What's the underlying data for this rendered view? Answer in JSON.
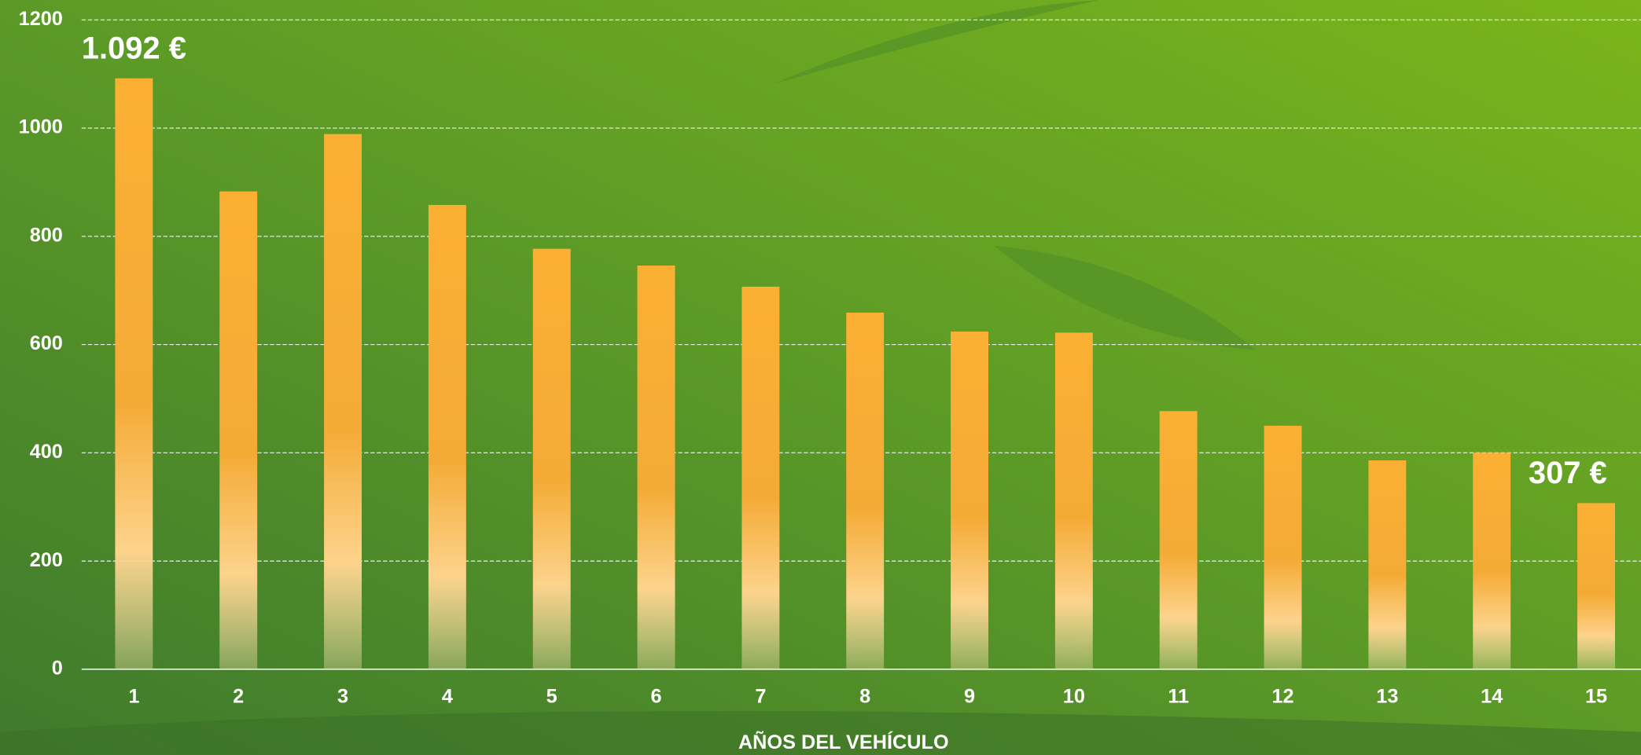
{
  "chart_data": {
    "type": "bar",
    "x_label": "AÑOS DEL VEHÍCULO",
    "categories": [
      "1",
      "2",
      "3",
      "4",
      "5",
      "6",
      "7",
      "8",
      "9",
      "10",
      "11",
      "12",
      "13",
      "14",
      "15"
    ],
    "values": [
      1092,
      883,
      989,
      858,
      777,
      746,
      707,
      659,
      624,
      622,
      477,
      450,
      386,
      400,
      307
    ],
    "value_labels": [
      "1.092 €",
      null,
      null,
      null,
      null,
      null,
      null,
      null,
      null,
      null,
      null,
      null,
      null,
      null,
      "307 €"
    ],
    "color": "#fbb034",
    "ylim": [
      0,
      1200
    ],
    "yticks": [
      0,
      200,
      400,
      600,
      800,
      1000,
      1200
    ],
    "grid": true
  }
}
